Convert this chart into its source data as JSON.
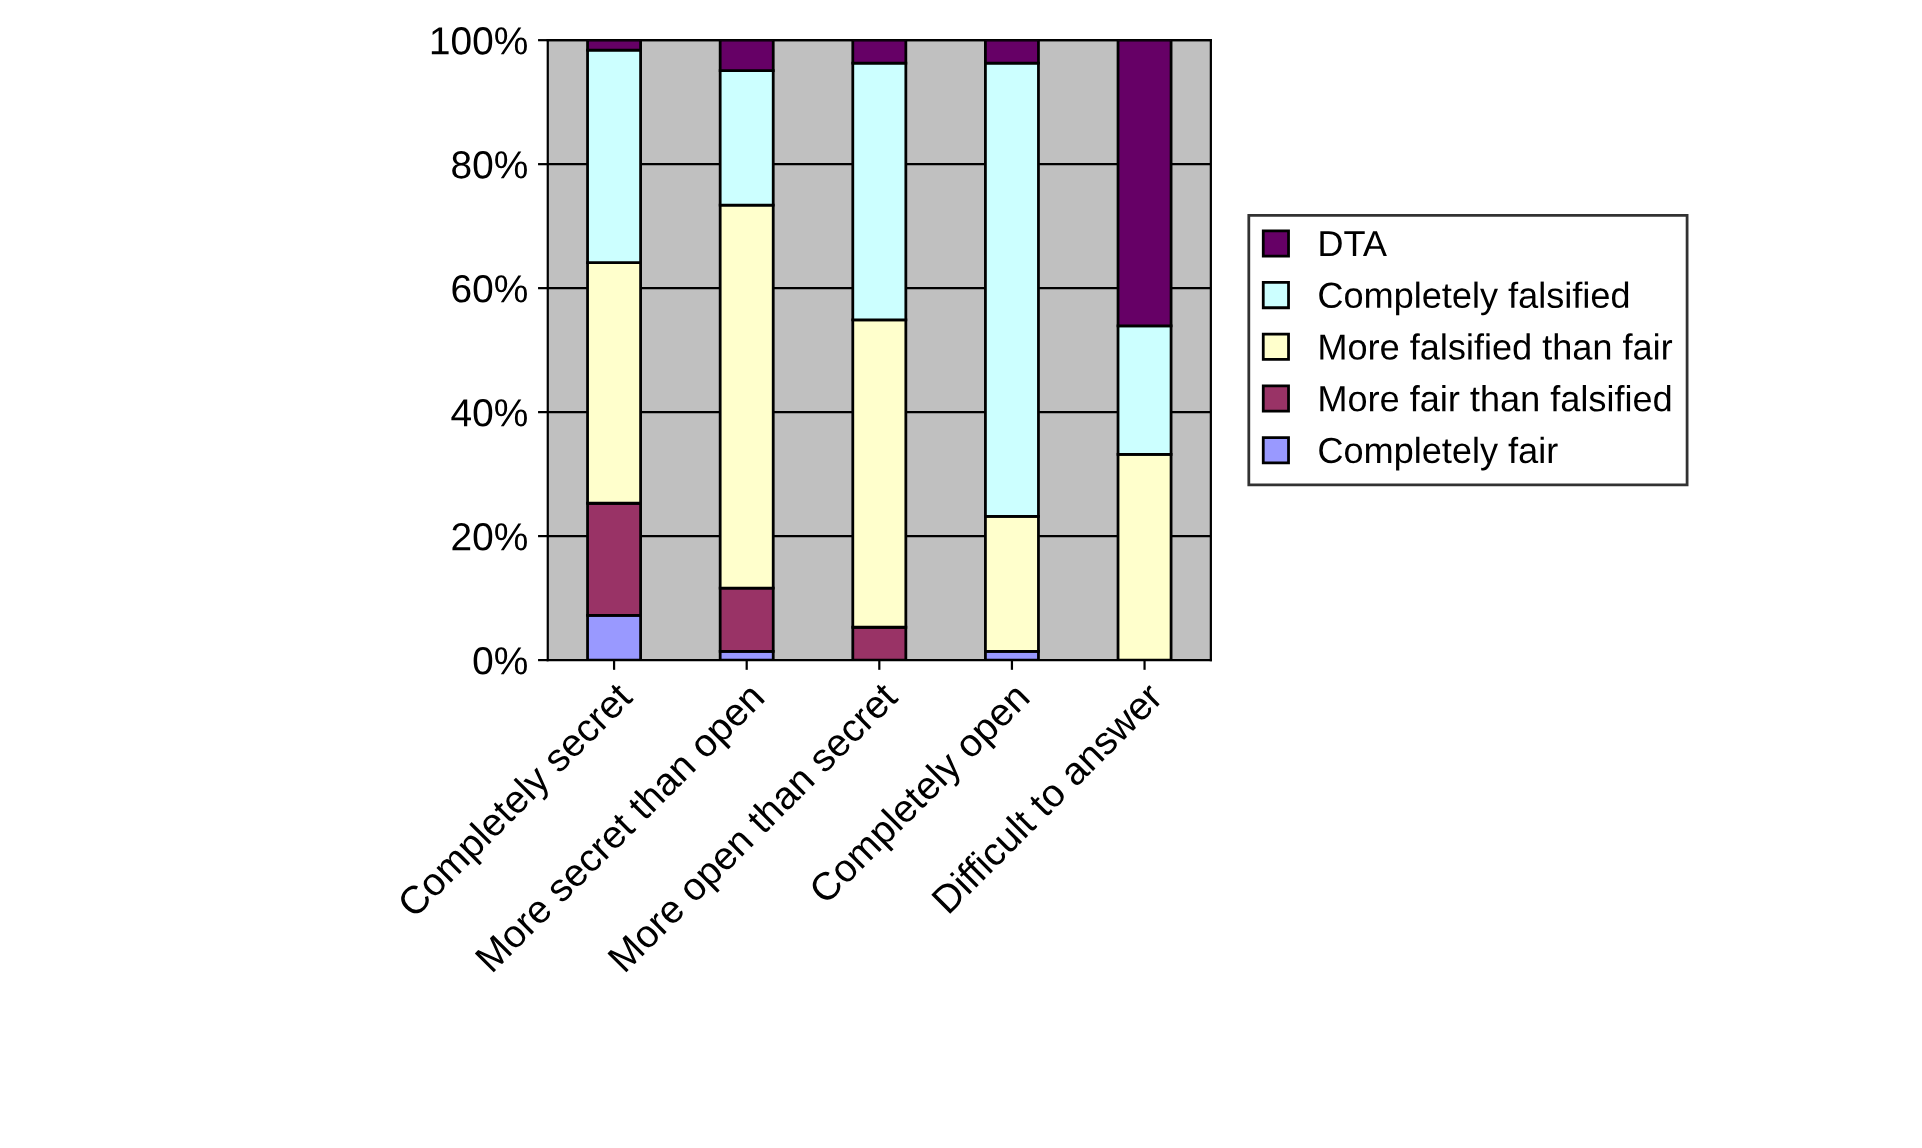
{
  "chart_data": {
    "type": "bar",
    "stacked": true,
    "categories": [
      "Completely secret",
      "More secret than open",
      "More open than secret",
      "Completely open",
      "Difficult to answer"
    ],
    "series": [
      {
        "name": "Completely fair",
        "color": "#9999ff",
        "values": [
          7.2,
          1.4,
          0,
          1.4,
          0
        ]
      },
      {
        "name": "More fair than falsified",
        "color": "#993366",
        "values": [
          18.1,
          10.2,
          5.3,
          0,
          0
        ]
      },
      {
        "name": "More falsified than fair",
        "color": "#ffffcc",
        "values": [
          38.8,
          61.8,
          49.6,
          21.8,
          33.2
        ]
      },
      {
        "name": "Completely falsified",
        "color": "#ccffff",
        "values": [
          34.3,
          21.7,
          41.4,
          73.1,
          20.7
        ]
      },
      {
        "name": "DTA",
        "color": "#660066",
        "values": [
          1.6,
          4.9,
          3.7,
          3.7,
          46.1
        ]
      }
    ],
    "ylim": [
      0,
      100
    ],
    "yticks": [
      {
        "value": 0,
        "label": "0%"
      },
      {
        "value": 20,
        "label": "20%"
      },
      {
        "value": 40,
        "label": "40%"
      },
      {
        "value": 60,
        "label": "60%"
      },
      {
        "value": 80,
        "label": "80%"
      },
      {
        "value": 100,
        "label": "100%"
      }
    ],
    "grid": "y",
    "legend": "right"
  }
}
